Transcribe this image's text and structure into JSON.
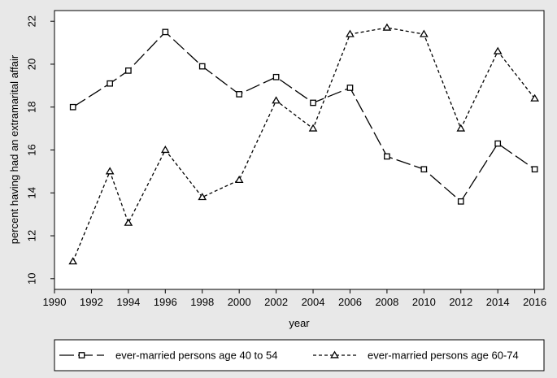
{
  "chart_data": {
    "type": "line",
    "xlabel": "year",
    "ylabel": "percent having had an extramarital affair",
    "xlim": [
      1990,
      2016
    ],
    "ylim": [
      10,
      22
    ],
    "x_ticks": [
      "1990",
      "1992",
      "1994",
      "1996",
      "1998",
      "2000",
      "2002",
      "2004",
      "2006",
      "2008",
      "2010",
      "2012",
      "2014",
      "2016"
    ],
    "y_ticks": [
      "10",
      "12",
      "14",
      "16",
      "18",
      "20",
      "22"
    ],
    "grid": false,
    "legend_position": "bottom",
    "series": [
      {
        "name": "ever-married persons age 40 to 54",
        "marker": "square",
        "line_style": "long-dash",
        "x": [
          1991,
          1993,
          1994,
          1996,
          1998,
          2000,
          2002,
          2004,
          2006,
          2008,
          2010,
          2012,
          2014,
          2016
        ],
        "values": [
          18.0,
          19.1,
          19.7,
          21.5,
          19.9,
          18.6,
          19.4,
          18.2,
          18.9,
          15.7,
          15.1,
          13.6,
          16.3,
          15.1
        ]
      },
      {
        "name": "ever-married persons age 60-74",
        "marker": "triangle",
        "line_style": "short-dash",
        "x": [
          1991,
          1993,
          1994,
          1996,
          1998,
          2000,
          2002,
          2004,
          2006,
          2008,
          2010,
          2012,
          2014,
          2016
        ],
        "values": [
          10.8,
          15.0,
          12.6,
          16.0,
          13.8,
          14.6,
          18.3,
          17.0,
          21.4,
          21.7,
          21.4,
          17.0,
          20.6,
          18.4
        ]
      }
    ]
  }
}
